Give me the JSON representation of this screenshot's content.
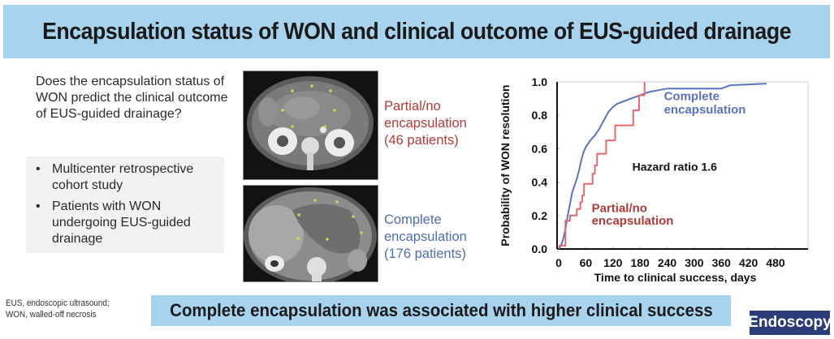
{
  "header": {
    "title": "Encapsulation status of WON and clinical outcome of EUS-guided drainage"
  },
  "question": "Does the encapsulation status of WON predict the clinical outcome of EUS-guided drainage?",
  "methods": {
    "bullets": [
      "Multicenter retrospective cohort study",
      "Patients with WON undergoing EUS-guided drainage"
    ]
  },
  "images": {
    "top": {
      "label_line1": "Partial/no",
      "label_line2": "encapsulation",
      "label_line3": "(46 patients)",
      "description": "CT scan, partial/no encapsulation"
    },
    "bottom": {
      "label_line1": "Complete",
      "label_line2": "encapsulation",
      "label_line3": "(176 patients)",
      "description": "CT scan, complete encapsulation"
    }
  },
  "colors": {
    "title_bg": "#a7d3ef",
    "complete": "#5a72c0",
    "partial": "#e36a6a",
    "partial_text": "#b13a3a",
    "complete_text": "#4e6db1",
    "logo_bg": "#2b3c78"
  },
  "chart_data": {
    "type": "line",
    "title": "",
    "xlabel": "Time to clinical success, days",
    "ylabel": "Probability of WON resolution",
    "xlim": [
      0,
      500
    ],
    "ylim": [
      0,
      1.0
    ],
    "xticks": [
      0,
      60,
      120,
      180,
      240,
      300,
      360,
      420,
      480
    ],
    "yticks": [
      "0.0",
      "0.2",
      "0.4",
      "0.6",
      "0.8",
      "1.0"
    ],
    "grid": false,
    "annotation": "Hazard ratio 1.6",
    "series": [
      {
        "name": "Complete encapsulation",
        "label_line1": "Complete",
        "label_line2": "encapsulation",
        "color": "#5a72c0",
        "step": false,
        "points": [
          [
            0,
            0.0
          ],
          [
            5,
            0.02
          ],
          [
            10,
            0.06
          ],
          [
            15,
            0.12
          ],
          [
            20,
            0.2
          ],
          [
            25,
            0.27
          ],
          [
            30,
            0.34
          ],
          [
            35,
            0.38
          ],
          [
            40,
            0.42
          ],
          [
            45,
            0.47
          ],
          [
            50,
            0.53
          ],
          [
            55,
            0.58
          ],
          [
            60,
            0.61
          ],
          [
            70,
            0.65
          ],
          [
            80,
            0.68
          ],
          [
            90,
            0.72
          ],
          [
            100,
            0.77
          ],
          [
            110,
            0.82
          ],
          [
            120,
            0.85
          ],
          [
            130,
            0.87
          ],
          [
            140,
            0.88
          ],
          [
            150,
            0.89
          ],
          [
            160,
            0.9
          ],
          [
            170,
            0.91
          ],
          [
            180,
            0.92
          ],
          [
            190,
            0.93
          ],
          [
            200,
            0.94
          ],
          [
            220,
            0.95
          ],
          [
            240,
            0.96
          ],
          [
            300,
            0.96
          ],
          [
            360,
            0.96
          ],
          [
            380,
            0.98
          ],
          [
            460,
            0.99
          ]
        ]
      },
      {
        "name": "Partial/no encapsulation",
        "label_line1": "Partial/no",
        "label_line2": "encapsulation",
        "color": "#e36a6a",
        "step": true,
        "points": [
          [
            0,
            0.02
          ],
          [
            15,
            0.02
          ],
          [
            15,
            0.17
          ],
          [
            25,
            0.17
          ],
          [
            25,
            0.2
          ],
          [
            40,
            0.2
          ],
          [
            40,
            0.24
          ],
          [
            48,
            0.24
          ],
          [
            48,
            0.28
          ],
          [
            52,
            0.28
          ],
          [
            52,
            0.32
          ],
          [
            56,
            0.32
          ],
          [
            56,
            0.39
          ],
          [
            75,
            0.39
          ],
          [
            75,
            0.45
          ],
          [
            80,
            0.45
          ],
          [
            80,
            0.5
          ],
          [
            85,
            0.5
          ],
          [
            85,
            0.57
          ],
          [
            105,
            0.57
          ],
          [
            105,
            0.65
          ],
          [
            125,
            0.65
          ],
          [
            125,
            0.74
          ],
          [
            165,
            0.74
          ],
          [
            165,
            0.83
          ],
          [
            178,
            0.83
          ],
          [
            178,
            0.92
          ],
          [
            190,
            0.92
          ],
          [
            190,
            1.0
          ]
        ]
      }
    ]
  },
  "footnote": {
    "line1": "EUS, endoscopic ultrasound;",
    "line2": "WON, walled-off necrosis"
  },
  "conclusion": "Complete encapsulation was associated with higher clinical success",
  "logo": "Endoscopy"
}
